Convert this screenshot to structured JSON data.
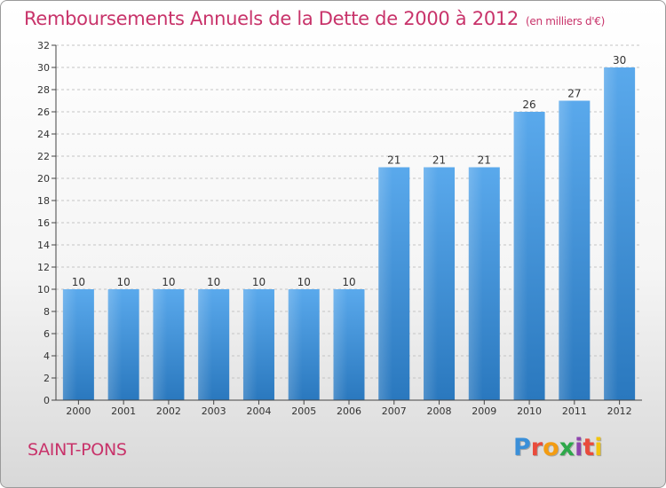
{
  "chart_data": {
    "type": "bar",
    "title": "Remboursements Annuels de la Dette de 2000 à 2012",
    "subtitle": "(en milliers d'€)",
    "categories": [
      "2000",
      "2001",
      "2002",
      "2003",
      "2004",
      "2005",
      "2006",
      "2007",
      "2008",
      "2009",
      "2010",
      "2011",
      "2012"
    ],
    "values": [
      10,
      10,
      10,
      10,
      10,
      10,
      10,
      21,
      21,
      21,
      26,
      27,
      30
    ],
    "ylim": [
      0,
      32
    ],
    "yticks": [
      0,
      2,
      4,
      6,
      8,
      10,
      12,
      14,
      16,
      18,
      20,
      22,
      24,
      26,
      28,
      30,
      32
    ],
    "grid": "dashed-horizontal",
    "bar_color": "#4a9be0",
    "legend": "none"
  },
  "footer": {
    "city": "SAINT-PONS",
    "logo": "Proxiti",
    "logo_colors": [
      "#3a8fd8",
      "#e94b3c",
      "#f39c12",
      "#2ea84a",
      "#8e44ad",
      "#e94b3c",
      "#f1c40f"
    ]
  }
}
